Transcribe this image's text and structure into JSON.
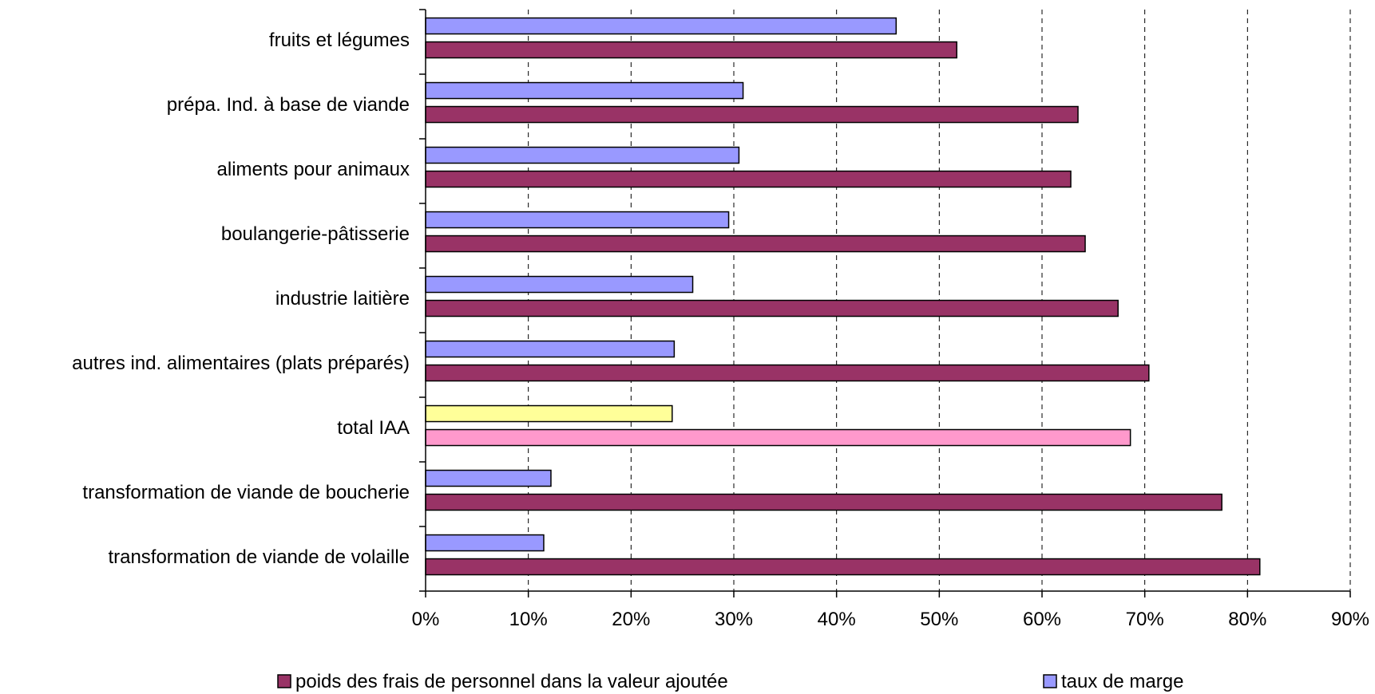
{
  "chart_data": {
    "type": "bar",
    "orientation": "horizontal",
    "categories": [
      "fruits et légumes",
      "prépa. Ind. à base de viande",
      "aliments pour animaux",
      "boulangerie-pâtisserie",
      "industrie laitière",
      "autres ind. alimentaires (plats préparés)",
      "total IAA",
      "transformation de viande de boucherie",
      "transformation de viande de volaille"
    ],
    "series": [
      {
        "name": "poids des frais de personnel dans la valeur ajoutée",
        "color": "#993366",
        "highlight_color": "#FF99CC",
        "values": [
          51.7,
          63.5,
          62.8,
          64.2,
          67.4,
          70.4,
          68.6,
          77.5,
          81.2
        ]
      },
      {
        "name": "taux de marge",
        "color": "#9999FF",
        "highlight_color": "#FFFF99",
        "values": [
          45.8,
          30.9,
          30.5,
          29.5,
          26.0,
          24.2,
          24.0,
          12.2,
          11.5
        ]
      }
    ],
    "highlight_category": "total IAA",
    "x_ticks": [
      "0%",
      "10%",
      "20%",
      "30%",
      "40%",
      "50%",
      "60%",
      "70%",
      "80%",
      "90%"
    ],
    "xlim": [
      0,
      90
    ],
    "grid": "vertical-dashed",
    "legend_position": "bottom"
  }
}
